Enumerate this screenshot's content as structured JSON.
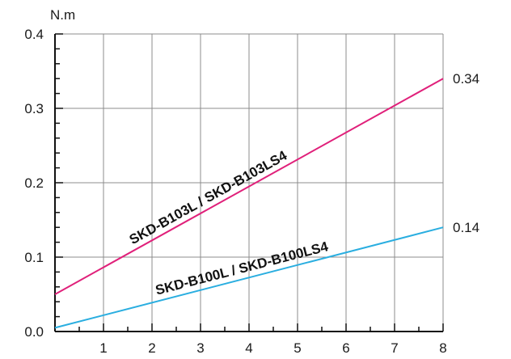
{
  "chart_data": {
    "type": "line",
    "y_unit_label": "N.m",
    "xlim": [
      0,
      8
    ],
    "ylim": [
      0,
      0.4
    ],
    "x_ticks": [
      1,
      2,
      3,
      4,
      5,
      6,
      7,
      8
    ],
    "x_tick_labels": [
      "1",
      "2",
      "3",
      "4",
      "5",
      "6",
      "7",
      "8"
    ],
    "y_ticks": [
      0.0,
      0.1,
      0.2,
      0.3,
      0.4
    ],
    "y_tick_labels": [
      "0.0",
      "0.1",
      "0.2",
      "0.3",
      "0.4"
    ],
    "grid": true,
    "series": [
      {
        "name": "SKD-B103L / SKD-B103LS4",
        "color": "#e0207a",
        "x": [
          0,
          8
        ],
        "y": [
          0.05,
          0.34
        ],
        "end_label": "0.34"
      },
      {
        "name": "SKD-B100L / SKD-B100LS4",
        "color": "#2aaee0",
        "x": [
          0,
          8
        ],
        "y": [
          0.005,
          0.14
        ],
        "end_label": "0.14"
      }
    ]
  }
}
